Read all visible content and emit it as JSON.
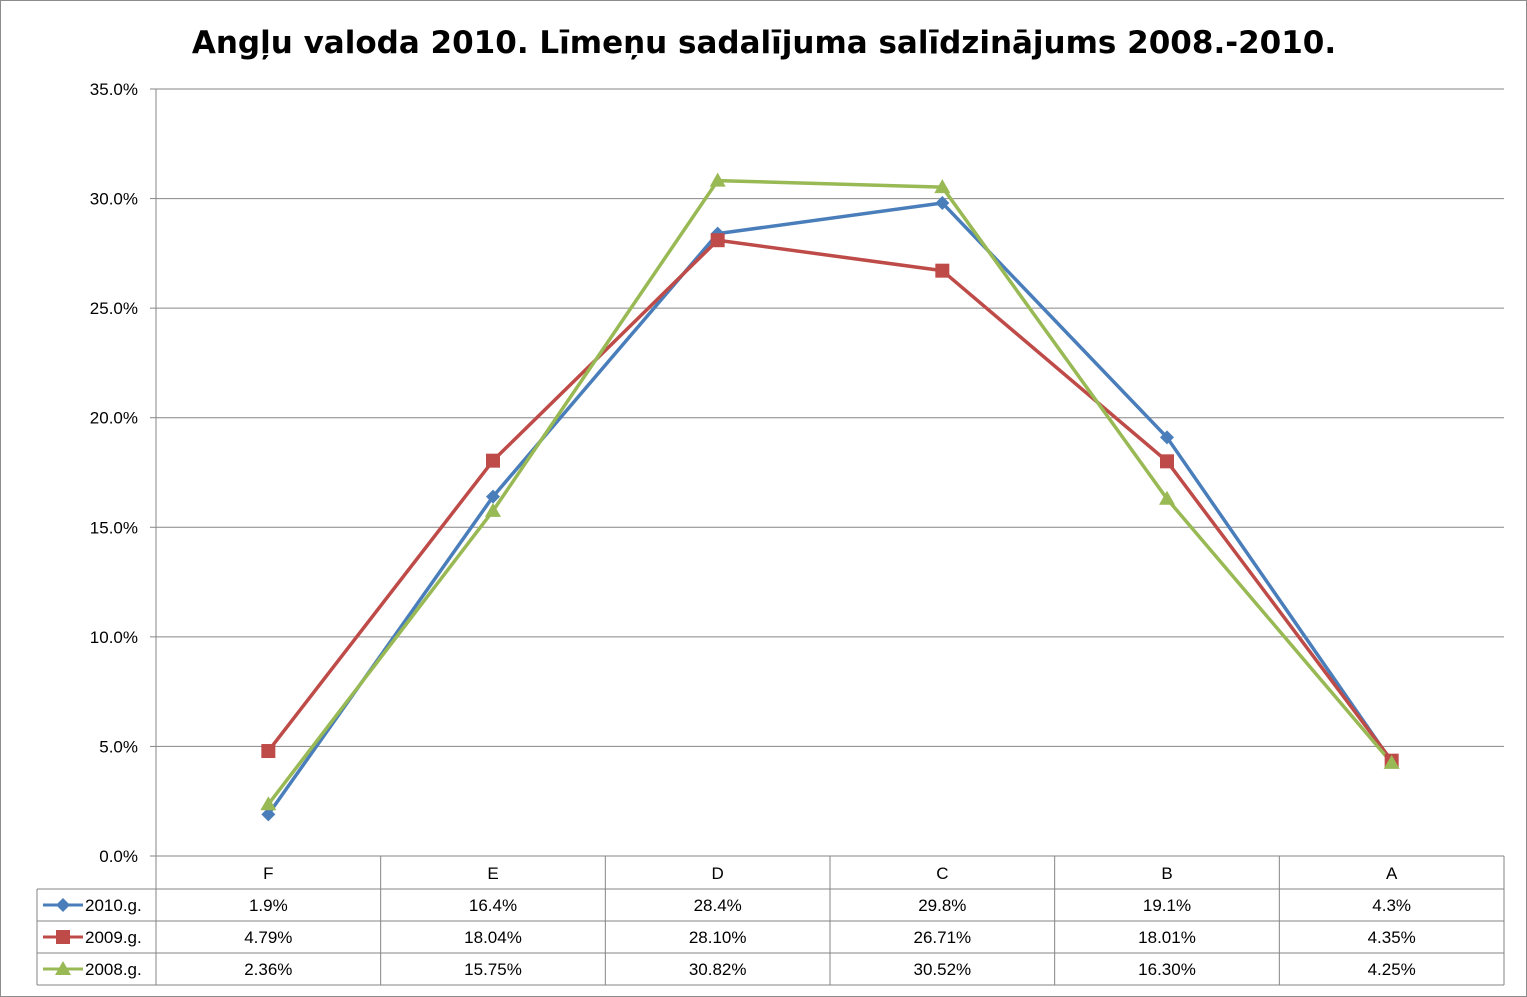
{
  "chart_data": {
    "type": "line",
    "title": "Angļu valoda 2010. Līmeņu sadalījuma salīdzinājums 2008.-2010.",
    "categories": [
      "F",
      "E",
      "D",
      "C",
      "B",
      "A"
    ],
    "y_ticks": [
      "0.0%",
      "5.0%",
      "10.0%",
      "15.0%",
      "20.0%",
      "25.0%",
      "30.0%",
      "35.0%"
    ],
    "ylim": [
      0,
      35
    ],
    "grid": true,
    "legend": "data-table",
    "series": [
      {
        "name": "2010.g.",
        "marker": "diamond",
        "color": "#4a7ebb",
        "values": [
          1.9,
          16.4,
          28.4,
          29.8,
          19.1,
          4.3
        ],
        "labels": [
          "1.9%",
          "16.4%",
          "28.4%",
          "29.8%",
          "19.1%",
          "4.3%"
        ]
      },
      {
        "name": "2009.g.",
        "marker": "square",
        "color": "#be4b48",
        "values": [
          4.79,
          18.04,
          28.1,
          26.71,
          18.01,
          4.35
        ],
        "labels": [
          "4.79%",
          "18.04%",
          "28.10%",
          "26.71%",
          "18.01%",
          "4.35%"
        ]
      },
      {
        "name": "2008.g.",
        "marker": "triangle",
        "color": "#98b954",
        "values": [
          2.36,
          15.75,
          30.82,
          30.52,
          16.3,
          4.25
        ],
        "labels": [
          "2.36%",
          "15.75%",
          "30.82%",
          "30.52%",
          "16.30%",
          "4.25%"
        ]
      }
    ]
  }
}
